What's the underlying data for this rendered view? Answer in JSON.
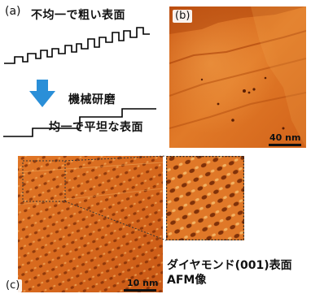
{
  "panel_a": {
    "label": "(a)",
    "caption_top": "不均一で粗い表面",
    "caption_middle": "機械研磨",
    "caption_bottom": "均一で平坦な表面",
    "arrow_color": "#2a8fd8"
  },
  "panel_b": {
    "label": "(b)",
    "scale": "40 nm"
  },
  "panel_c": {
    "label": "(c)",
    "scale": "10 nm",
    "caption_line1": "ダイヤモンド(001)表面",
    "caption_line2": "AFM像"
  },
  "colors": {
    "afm_dark": "#7a2a05",
    "afm_mid": "#d4661c",
    "afm_light": "#f3b060"
  }
}
